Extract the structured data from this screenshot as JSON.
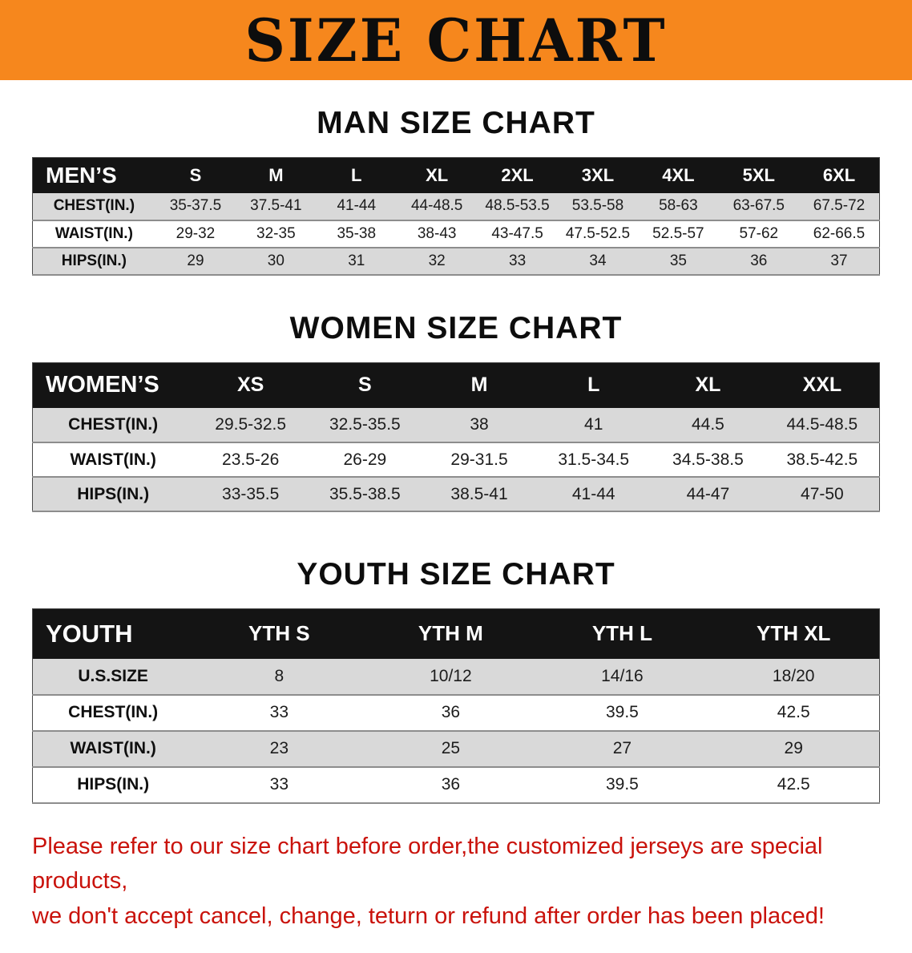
{
  "banner": {
    "title": "SIZE CHART",
    "bg_color": "#F6871D",
    "text_color": "#0D0D0D"
  },
  "sections": [
    {
      "id": "men",
      "heading": "MAN SIZE CHART",
      "table": {
        "header": [
          "MEN’S",
          "S",
          "M",
          "L",
          "XL",
          "2XL",
          "3XL",
          "4XL",
          "5XL",
          "6XL"
        ],
        "rows": [
          [
            "CHEST(IN.)",
            "35-37.5",
            "37.5-41",
            "41-44",
            "44-48.5",
            "48.5-53.5",
            "53.5-58",
            "58-63",
            "63-67.5",
            "67.5-72"
          ],
          [
            "WAIST(IN.)",
            "29-32",
            "32-35",
            "35-38",
            "38-43",
            "43-47.5",
            "47.5-52.5",
            "52.5-57",
            "57-62",
            "62-66.5"
          ],
          [
            "HIPS(IN.)",
            "29",
            "30",
            "31",
            "32",
            "33",
            "34",
            "35",
            "36",
            "37"
          ]
        ]
      }
    },
    {
      "id": "women",
      "heading": "WOMEN SIZE CHART",
      "table": {
        "header": [
          "WOMEN’S",
          "XS",
          "S",
          "M",
          "L",
          "XL",
          "XXL"
        ],
        "rows": [
          [
            "CHEST(IN.)",
            "29.5-32.5",
            "32.5-35.5",
            "38",
            "41",
            "44.5",
            "44.5-48.5"
          ],
          [
            "WAIST(IN.)",
            "23.5-26",
            "26-29",
            "29-31.5",
            "31.5-34.5",
            "34.5-38.5",
            "38.5-42.5"
          ],
          [
            "HIPS(IN.)",
            "33-35.5",
            "35.5-38.5",
            "38.5-41",
            "41-44",
            "44-47",
            "47-50"
          ]
        ]
      }
    },
    {
      "id": "youth",
      "heading": "YOUTH SIZE CHART",
      "table": {
        "header": [
          "YOUTH",
          "YTH S",
          "YTH M",
          "YTH L",
          "YTH XL"
        ],
        "rows": [
          [
            "U.S.SIZE",
            "8",
            "10/12",
            "14/16",
            "18/20"
          ],
          [
            "CHEST(IN.)",
            "33",
            "36",
            "39.5",
            "42.5"
          ],
          [
            "WAIST(IN.)",
            "23",
            "25",
            "27",
            "29"
          ],
          [
            "HIPS(IN.)",
            "33",
            "36",
            "39.5",
            "42.5"
          ]
        ]
      }
    }
  ],
  "footer": {
    "lines": [
      "Please refer to our size chart before order,the customized jerseys are special products,",
      "we don't accept cancel, change, teturn or refund after order has been placed!"
    ],
    "text_color": "#C9120B"
  }
}
